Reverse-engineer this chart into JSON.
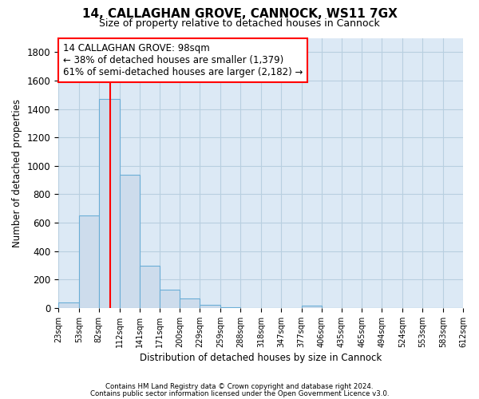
{
  "title": "14, CALLAGHAN GROVE, CANNOCK, WS11 7GX",
  "subtitle": "Size of property relative to detached houses in Cannock",
  "xlabel": "Distribution of detached houses by size in Cannock",
  "ylabel": "Number of detached properties",
  "bin_edges": [
    23,
    53,
    82,
    112,
    141,
    171,
    200,
    229,
    259,
    288,
    318,
    347,
    377,
    406,
    435,
    465,
    494,
    524,
    553,
    583,
    612
  ],
  "bar_heights": [
    40,
    650,
    1470,
    935,
    295,
    130,
    65,
    25,
    3,
    0,
    0,
    0,
    15,
    0,
    0,
    0,
    0,
    0,
    0,
    0
  ],
  "bar_color": "#cddcec",
  "bar_edge_color": "#6baed6",
  "red_line_x": 98,
  "annotation_line1": "14 CALLAGHAN GROVE: 98sqm",
  "annotation_line2": "← 38% of detached houses are smaller (1,379)",
  "annotation_line3": "61% of semi-detached houses are larger (2,182) →",
  "ylim": [
    0,
    1900
  ],
  "yticks": [
    0,
    200,
    400,
    600,
    800,
    1000,
    1200,
    1400,
    1600,
    1800
  ],
  "grid_color": "#b8cfe0",
  "background_color": "#dce9f5",
  "footer_line1": "Contains HM Land Registry data © Crown copyright and database right 2024.",
  "footer_line2": "Contains public sector information licensed under the Open Government Licence v3.0."
}
